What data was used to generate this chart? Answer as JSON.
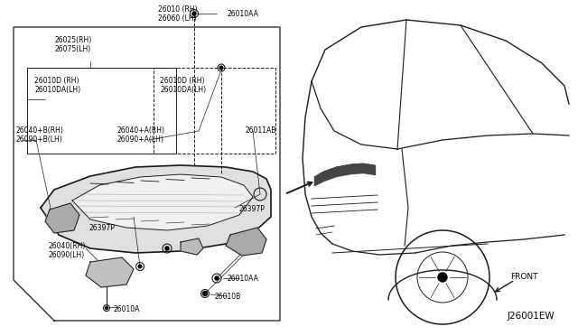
{
  "bg_color": "#ffffff",
  "line_color": "#1a1a1a",
  "fig_width": 6.4,
  "fig_height": 3.72,
  "diagram_code": "J26001EW",
  "labels": {
    "26010_rh": "26010 (RH)",
    "26060_lh": "26060 (LH)",
    "26010AA_top": "26010AA",
    "26025_rh": "26025(RH)",
    "26075_lh": "26075(LH)",
    "26010D_rh_l": "26010D (RH)",
    "26010DA_lh_l": "26010DA(LH)",
    "26010D_rh_r": "26010D (RH)",
    "26010DA_lh_r": "26010DA(LH)",
    "26040B_rh": "26040+B(RH)",
    "26090B_lh": "26090+B(LH)",
    "26040A_rh": "26040+A(RH)",
    "26090A_lh": "26090+A(LH)",
    "26011AB": "26011AB",
    "26397P_r": "26397P",
    "26397P_l": "26397P",
    "26040_rh": "26040(RH)",
    "26090_lh": "26090(LH)",
    "26010A": "26010A",
    "26010AA_bot": "26010AA",
    "26010B": "26010B",
    "front": "FRONT",
    "code": "J26001EW"
  }
}
